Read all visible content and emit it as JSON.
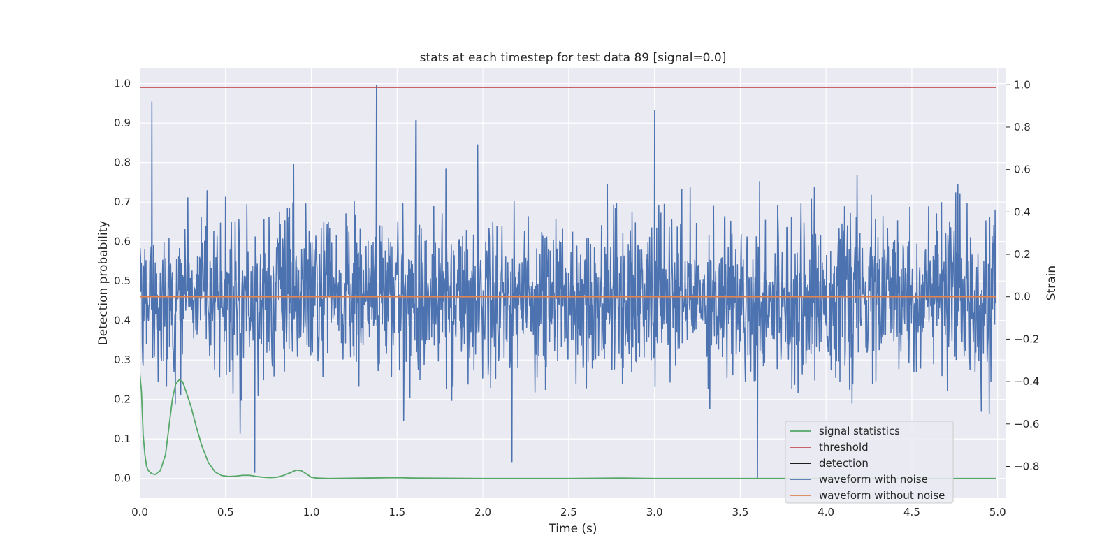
{
  "chart_data": {
    "type": "line",
    "title": "stats at each timestep for test data 89 [signal=0.0]",
    "xlabel": "Time (s)",
    "ylabel": "Detection probability",
    "y2label": "Strain",
    "xlim": [
      0.0,
      5.05
    ],
    "ylim": [
      -0.05,
      1.04
    ],
    "y2lim": [
      -0.95,
      1.08
    ],
    "xticks": [
      0.0,
      0.5,
      1.0,
      1.5,
      2.0,
      2.5,
      3.0,
      3.5,
      4.0,
      4.5,
      5.0
    ],
    "xtick_labels": [
      "0.0",
      "0.5",
      "1.0",
      "1.5",
      "2.0",
      "2.5",
      "3.0",
      "3.5",
      "4.0",
      "4.5",
      "5.0"
    ],
    "yticks": [
      0.0,
      0.1,
      0.2,
      0.3,
      0.4,
      0.5,
      0.6,
      0.7,
      0.8,
      0.9,
      1.0
    ],
    "ytick_labels": [
      "0.0",
      "0.1",
      "0.2",
      "0.3",
      "0.4",
      "0.5",
      "0.6",
      "0.7",
      "0.8",
      "0.9",
      "1.0"
    ],
    "y2ticks": [
      1.0,
      0.8,
      0.6,
      0.4,
      0.2,
      0.0,
      -0.2,
      -0.4,
      -0.6,
      -0.8
    ],
    "y2tick_labels": [
      "1.0",
      "0.8",
      "0.6",
      "0.4",
      "0.2",
      "0.0",
      "−0.2",
      "−0.4",
      "−0.6",
      "−0.8"
    ],
    "grid": true,
    "legend_position": "lower-right",
    "series": [
      {
        "name": "signal statistics",
        "axis": "left",
        "color": "#55a868",
        "x": [
          0.0,
          0.01,
          0.02,
          0.03,
          0.04,
          0.05,
          0.07,
          0.09,
          0.12,
          0.15,
          0.17,
          0.19,
          0.21,
          0.23,
          0.25,
          0.27,
          0.3,
          0.33,
          0.36,
          0.4,
          0.44,
          0.48,
          0.52,
          0.56,
          0.6,
          0.64,
          0.68,
          0.72,
          0.76,
          0.8,
          0.84,
          0.88,
          0.91,
          0.94,
          0.97,
          1.0,
          1.03,
          1.1,
          1.3,
          1.5,
          1.6,
          2.0,
          2.5,
          2.8,
          3.0,
          3.5,
          4.0,
          4.5,
          4.99
        ],
        "y": [
          0.27,
          0.22,
          0.11,
          0.06,
          0.03,
          0.02,
          0.012,
          0.01,
          0.02,
          0.06,
          0.13,
          0.2,
          0.24,
          0.25,
          0.245,
          0.22,
          0.18,
          0.13,
          0.085,
          0.04,
          0.016,
          0.007,
          0.005,
          0.006,
          0.008,
          0.008,
          0.005,
          0.003,
          0.002,
          0.003,
          0.008,
          0.015,
          0.021,
          0.02,
          0.012,
          0.003,
          0.001,
          0.0,
          0.001,
          0.002,
          0.001,
          0.0,
          0.0,
          0.001,
          0.0,
          0.0,
          0.0,
          0.0,
          0.0
        ]
      },
      {
        "name": "threshold",
        "axis": "left",
        "color": "#c44e52",
        "x": [
          0.0,
          4.99
        ],
        "y": [
          0.99,
          0.99
        ]
      },
      {
        "name": "detection",
        "axis": "left",
        "color": "#000000",
        "x": [],
        "y": []
      },
      {
        "name": "waveform with noise",
        "axis": "right",
        "color": "#4c72b0",
        "x_range": [
          0.0,
          4.99
        ],
        "n_samples": 2048,
        "noise_sigma": 0.19,
        "y_range": [
          -0.87,
          1.0
        ],
        "peaks": [
          {
            "x": 0.07,
            "y": 0.92
          },
          {
            "x": 1.38,
            "y": 1.0
          },
          {
            "x": 1.61,
            "y": 0.83
          },
          {
            "x": 3.0,
            "y": 0.88
          },
          {
            "x": 3.6,
            "y": -0.86
          },
          {
            "x": 0.67,
            "y": -0.83
          },
          {
            "x": 2.17,
            "y": -0.78
          }
        ]
      },
      {
        "name": "waveform without noise",
        "axis": "right",
        "color": "#dd8452",
        "x": [
          0.0,
          4.99
        ],
        "y": [
          0.0,
          0.0
        ]
      }
    ]
  }
}
